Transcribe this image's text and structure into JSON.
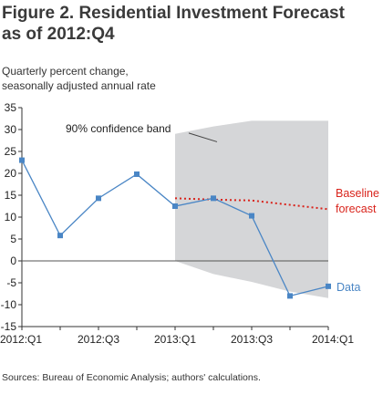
{
  "figure": {
    "title_line1": "Figure 2. Residential Investment Forecast",
    "title_line2": "as of 2012:Q4",
    "units_line1": "Quarterly percent change,",
    "units_line2": "seasonally adjusted annual rate",
    "source": "Sources: Bureau of Economic Analysis; authors' calculations."
  },
  "chart_data": {
    "type": "line",
    "ylim": [
      -15,
      35
    ],
    "yticks": [
      35,
      30,
      25,
      20,
      15,
      10,
      5,
      0,
      -5,
      -10,
      -15
    ],
    "quarters": [
      "2012:Q1",
      "2012:Q2",
      "2012:Q3",
      "2012:Q4",
      "2013:Q1",
      "2013:Q2",
      "2013:Q3",
      "2013:Q4",
      "2014:Q1"
    ],
    "x_tick_labels": [
      "2012:Q1",
      "",
      "2012:Q3",
      "",
      "2013:Q1",
      "",
      "2013:Q3",
      "",
      "2014:Q1"
    ],
    "series": [
      {
        "name": "Data",
        "color": "#4a86c5",
        "style": "solid-with-square-markers",
        "values": [
          23.0,
          5.8,
          14.3,
          19.8,
          12.5,
          14.3,
          10.3,
          -8.0,
          -5.8
        ]
      },
      {
        "name": "Baseline forecast",
        "color": "#d9241c",
        "style": "dotted",
        "x": [
          "2013:Q1",
          "2013:Q2",
          "2013:Q3",
          "2013:Q4",
          "2014:Q1"
        ],
        "values": [
          14.3,
          14.0,
          13.8,
          12.8,
          11.8
        ]
      }
    ],
    "band": {
      "label": "90% confidence band",
      "color": "#d5d6d8",
      "x": [
        "2013:Q1",
        "2013:Q2",
        "2013:Q3",
        "2013:Q4",
        "2014:Q1"
      ],
      "upper": [
        29.0,
        30.7,
        32.0,
        32.0,
        32.0
      ],
      "lower": [
        0.0,
        -3.0,
        -4.8,
        -7.0,
        -8.5
      ]
    },
    "zero_line": true,
    "grid": false
  }
}
